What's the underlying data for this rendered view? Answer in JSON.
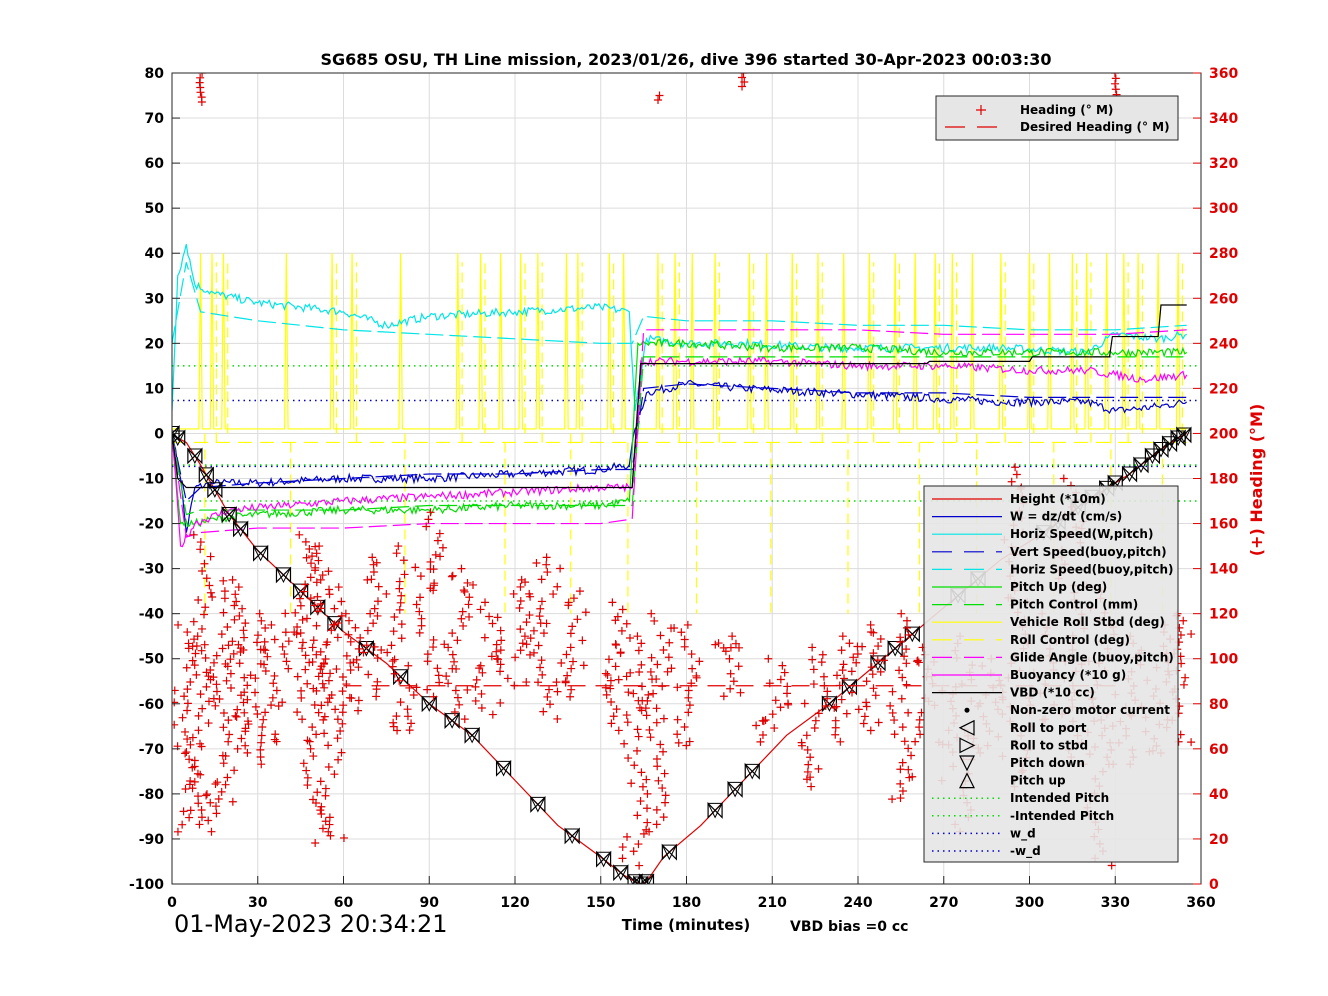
{
  "chart_data": {
    "type": "line",
    "title": "SG685 OSU, TH Line mission, 2023/01/26, dive 396 started 30-Apr-2023 00:03:30",
    "xlabel": "Time (minutes)",
    "ylabel_right": "(+) Heading (°M)",
    "xlim": [
      0,
      360
    ],
    "ylim": [
      -100,
      80
    ],
    "ylim_right": [
      0,
      360
    ],
    "x_ticks": [
      0,
      30,
      60,
      90,
      120,
      150,
      180,
      210,
      240,
      270,
      300,
      330,
      360
    ],
    "y_ticks": [
      -100,
      -90,
      -80,
      -70,
      -60,
      -50,
      -40,
      -30,
      -20,
      -10,
      0,
      10,
      20,
      30,
      40,
      50,
      60,
      70,
      80
    ],
    "y_ticks_right": [
      0,
      20,
      40,
      60,
      80,
      100,
      120,
      140,
      160,
      180,
      200,
      220,
      240,
      260,
      280,
      300,
      320,
      340,
      360
    ],
    "grid": true,
    "vbd_bias_text": "VBD bias =0 cc",
    "timestamp": "01-May-2023 20:34:21",
    "legend_top": [
      {
        "label": "Heading (° M)",
        "color": "#e00000",
        "style": "plus"
      },
      {
        "label": "Desired Heading (° M)",
        "color": "#e00000",
        "style": "dash"
      }
    ],
    "legend_main": [
      {
        "label": "Height (*10m)",
        "color": "#e00000",
        "style": "line"
      },
      {
        "label": "W = dz/dt (cm/s)",
        "color": "#0000cc",
        "style": "line"
      },
      {
        "label": "Horiz Speed(W,pitch)",
        "color": "#00e5e5",
        "style": "line"
      },
      {
        "label": "Vert Speed(buoy,pitch)",
        "color": "#0000cc",
        "style": "dash"
      },
      {
        "label": "Horiz Speed(buoy,pitch)",
        "color": "#00e5e5",
        "style": "dash"
      },
      {
        "label": "Pitch Up (deg)",
        "color": "#00dd00",
        "style": "line"
      },
      {
        "label": "Pitch Control (mm)",
        "color": "#00dd00",
        "style": "dash"
      },
      {
        "label": "Vehicle Roll Stbd (deg)",
        "color": "#ffff00",
        "style": "line"
      },
      {
        "label": "Roll Control (deg)",
        "color": "#ffff00",
        "style": "dash"
      },
      {
        "label": "Glide Angle (buoy,pitch)",
        "color": "#ff00ff",
        "style": "dash"
      },
      {
        "label": "Buoyancy (*10 g)",
        "color": "#ff00ff",
        "style": "line"
      },
      {
        "label": "VBD (*10 cc)",
        "color": "#000000",
        "style": "line"
      },
      {
        "label": "Non-zero motor current",
        "color": "#000000",
        "style": "dot"
      },
      {
        "label": "Roll to port",
        "color": "#000000",
        "style": "tri-left"
      },
      {
        "label": "Roll to stbd",
        "color": "#000000",
        "style": "tri-right"
      },
      {
        "label": "Pitch down",
        "color": "#000000",
        "style": "tri-down"
      },
      {
        "label": "Pitch up",
        "color": "#000000",
        "style": "tri-up"
      },
      {
        "label": "Intended Pitch",
        "color": "#00dd00",
        "style": "dotted"
      },
      {
        "label": "-Intended Pitch",
        "color": "#00dd00",
        "style": "dotted"
      },
      {
        "label": "w_d",
        "color": "#0000cc",
        "style": "dotted"
      },
      {
        "label": "-w_d",
        "color": "#0000cc",
        "style": "dotted"
      }
    ],
    "series": [
      {
        "name": "Height (*10m)",
        "color": "#e00000",
        "x": [
          0,
          2,
          5,
          10,
          20,
          30,
          45,
          60,
          75,
          90,
          105,
          120,
          135,
          150,
          158,
          162,
          164,
          166,
          172,
          185,
          200,
          215,
          230,
          245,
          260,
          275,
          290,
          305,
          320,
          335,
          345,
          352,
          355
        ],
        "y": [
          0,
          -1,
          -2,
          -7,
          -18,
          -26,
          -35,
          -44,
          -51,
          -60,
          -67,
          -77,
          -87,
          -94,
          -98,
          -99.5,
          -100,
          -99.5,
          -94,
          -87,
          -77,
          -67,
          -60,
          -52,
          -44,
          -36,
          -28,
          -22,
          -15,
          -9,
          -4,
          -1,
          0
        ]
      },
      {
        "name": "W = dz/dt (cm/s)",
        "color": "#0000cc",
        "x": [
          0,
          3,
          5,
          8,
          15,
          30,
          60,
          90,
          120,
          150,
          160,
          162,
          166,
          180,
          200,
          230,
          260,
          290,
          320,
          330,
          345,
          355
        ],
        "y": [
          0,
          -10,
          -22,
          -12,
          -11,
          -11,
          -10,
          -10,
          -9,
          -8,
          -7,
          1,
          9,
          11,
          10,
          9,
          8,
          7,
          7,
          5,
          6,
          7
        ]
      },
      {
        "name": "Horiz Speed(W,pitch)",
        "color": "#00e5e5",
        "x": [
          0,
          2,
          5,
          8,
          15,
          30,
          60,
          75,
          90,
          120,
          150,
          160,
          162,
          166,
          180,
          200,
          230,
          260,
          290,
          320,
          330,
          345,
          355
        ],
        "y": [
          5,
          35,
          42,
          33,
          31,
          29,
          27,
          24,
          26,
          27,
          28,
          27,
          5,
          21,
          20,
          20,
          19,
          19,
          19,
          18,
          22,
          21,
          22
        ]
      },
      {
        "name": "Vert Speed(buoy,pitch)",
        "color": "#0000cc",
        "x": [
          0,
          5,
          10,
          30,
          60,
          90,
          120,
          150,
          161,
          165,
          180,
          210,
          240,
          270,
          300,
          330,
          355
        ],
        "y": [
          0,
          -15,
          -12,
          -11,
          -10,
          -9,
          -9,
          -8,
          -8,
          10,
          11,
          10,
          9,
          9,
          8,
          8,
          8
        ]
      },
      {
        "name": "Horiz Speed(buoy,pitch)",
        "color": "#00e5e5",
        "x": [
          0,
          5,
          10,
          30,
          60,
          90,
          120,
          150,
          161,
          165,
          180,
          210,
          240,
          270,
          300,
          330,
          355
        ],
        "y": [
          20,
          38,
          27,
          25,
          23,
          22,
          21,
          20,
          20,
          26,
          25,
          25,
          24,
          24,
          23,
          23,
          24
        ]
      },
      {
        "name": "Pitch Up (deg)",
        "color": "#00dd00",
        "x": [
          0,
          3,
          8,
          15,
          30,
          60,
          90,
          120,
          150,
          160,
          163,
          166,
          180,
          210,
          240,
          270,
          300,
          330,
          355
        ],
        "y": [
          0,
          -20,
          -20,
          -19,
          -18,
          -17,
          -17,
          -16,
          -16,
          -15,
          20,
          20,
          20,
          19,
          19,
          18,
          18,
          18,
          18
        ]
      },
      {
        "name": "Pitch Control (mm)",
        "color": "#00dd00",
        "x": [
          0,
          5,
          10,
          30,
          60,
          90,
          120,
          150,
          161,
          165,
          180,
          210,
          240,
          270,
          300,
          330,
          355
        ],
        "y": [
          0,
          -18,
          -17,
          -17,
          -17,
          -16,
          -16,
          -16,
          -16,
          17,
          17,
          17,
          17,
          17,
          17,
          17,
          17
        ]
      },
      {
        "name": "Buoyancy (*10 g)",
        "color": "#ff00ff",
        "x": [
          0,
          3,
          8,
          20,
          40,
          60,
          90,
          120,
          150,
          161,
          164,
          180,
          210,
          240,
          270,
          300,
          320,
          330,
          340,
          355
        ],
        "y": [
          0,
          -25,
          -20,
          -17,
          -16,
          -15,
          -14,
          -13,
          -12,
          -12,
          16,
          16,
          16,
          15,
          15,
          14,
          14,
          13,
          12,
          13
        ]
      },
      {
        "name": "Glide Angle (buoy,pitch)",
        "color": "#ff00ff",
        "x": [
          0,
          5,
          10,
          30,
          60,
          90,
          120,
          150,
          161,
          165,
          180,
          210,
          240,
          270,
          300,
          330,
          355
        ],
        "y": [
          0,
          -23,
          -22,
          -21,
          -21,
          -20,
          -20,
          -20,
          -19,
          23,
          23,
          23,
          23,
          22,
          22,
          22,
          23
        ]
      },
      {
        "name": "VBD (*10 cc)",
        "color": "#000000",
        "x": [
          0,
          2,
          5,
          60,
          120,
          161,
          164,
          190,
          250,
          264,
          265,
          300,
          301,
          328,
          329,
          345,
          346,
          355
        ],
        "y": [
          0,
          -10,
          -12,
          -12,
          -12,
          -12,
          15.5,
          15.5,
          15.5,
          15.5,
          16,
          16,
          17,
          17,
          21.5,
          21.5,
          28.5,
          28.5
        ]
      }
    ],
    "reference_lines": [
      {
        "name": "Intended Pitch",
        "color": "#00dd00",
        "y": 15
      },
      {
        "name": "-Intended Pitch",
        "color": "#00dd00",
        "y": -15
      },
      {
        "name": "w_d",
        "color": "#0000cc",
        "y": 7.3
      },
      {
        "name": "-w_d",
        "color": "#0000cc",
        "y": -7.3
      },
      {
        "name": "Intended Pitch",
        "color": "#00dd00",
        "y": -7
      }
    ],
    "roll_spikes_x": [
      10,
      14,
      18,
      40,
      56,
      63,
      80,
      100,
      108,
      115,
      122,
      128,
      138,
      142,
      153,
      158,
      170,
      176,
      182,
      190,
      202,
      208,
      217,
      226,
      235,
      244,
      253,
      260,
      267,
      273,
      280,
      290,
      300,
      307,
      315,
      320,
      327,
      333,
      338,
      345,
      352
    ],
    "heading_clusters": [
      {
        "x": 5,
        "top": 115,
        "bottom": 20
      },
      {
        "x": 10,
        "top": 155,
        "bottom": 20
      },
      {
        "x": 18,
        "top": 130,
        "bottom": 25
      },
      {
        "x": 23,
        "top": 135,
        "bottom": 55
      },
      {
        "x": 30,
        "top": 120,
        "bottom": 50
      },
      {
        "x": 36,
        "top": 115,
        "bottom": 60
      },
      {
        "x": 45,
        "top": 155,
        "bottom": 70
      },
      {
        "x": 50,
        "top": 150,
        "bottom": 15
      },
      {
        "x": 55,
        "top": 135,
        "bottom": 20
      },
      {
        "x": 62,
        "top": 120,
        "bottom": 70
      },
      {
        "x": 70,
        "top": 145,
        "bottom": 80
      },
      {
        "x": 80,
        "top": 150,
        "bottom": 65
      },
      {
        "x": 90,
        "top": 165,
        "bottom": 80
      },
      {
        "x": 100,
        "top": 140,
        "bottom": 70
      },
      {
        "x": 110,
        "top": 125,
        "bottom": 75
      },
      {
        "x": 120,
        "top": 135,
        "bottom": 85
      },
      {
        "x": 130,
        "top": 145,
        "bottom": 70
      },
      {
        "x": 140,
        "top": 130,
        "bottom": 80
      },
      {
        "x": 155,
        "top": 125,
        "bottom": 65
      },
      {
        "x": 163,
        "top": 110,
        "bottom": 5
      },
      {
        "x": 170,
        "top": 120,
        "bottom": 20
      },
      {
        "x": 180,
        "top": 115,
        "bottom": 60
      },
      {
        "x": 195,
        "top": 110,
        "bottom": 80
      },
      {
        "x": 210,
        "top": 100,
        "bottom": 60
      },
      {
        "x": 225,
        "top": 105,
        "bottom": 40
      },
      {
        "x": 235,
        "top": 110,
        "bottom": 60
      },
      {
        "x": 245,
        "top": 115,
        "bottom": 65
      },
      {
        "x": 255,
        "top": 120,
        "bottom": 35
      },
      {
        "x": 265,
        "top": 105,
        "bottom": 60
      },
      {
        "x": 275,
        "top": 110,
        "bottom": 20
      },
      {
        "x": 285,
        "top": 100,
        "bottom": 55
      },
      {
        "x": 295,
        "top": 185,
        "bottom": 40
      },
      {
        "x": 305,
        "top": 120,
        "bottom": 70
      },
      {
        "x": 315,
        "top": 180,
        "bottom": 50
      },
      {
        "x": 325,
        "top": 130,
        "bottom": 5
      },
      {
        "x": 335,
        "top": 110,
        "bottom": 50
      },
      {
        "x": 345,
        "top": 115,
        "bottom": 55
      },
      {
        "x": 352,
        "top": 120,
        "bottom": 60
      }
    ],
    "heading_top_clusters": [
      {
        "x": 10,
        "top": 360,
        "bottom": 345
      },
      {
        "x": 170,
        "top": 350,
        "bottom": 346
      },
      {
        "x": 200,
        "top": 360,
        "bottom": 352
      },
      {
        "x": 330,
        "top": 360,
        "bottom": 348
      }
    ],
    "desired_heading": {
      "y": 88,
      "x_start": 60,
      "x_end": 330
    }
  }
}
